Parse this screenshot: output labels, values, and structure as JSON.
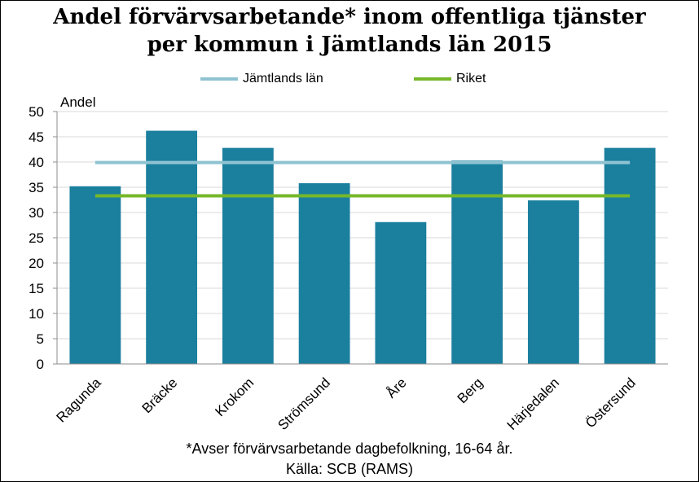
{
  "chart_data": {
    "type": "bar",
    "title_line1": "Andel förvärvsarbetande* inom offentliga tjänster",
    "title_line2": "per kommun i Jämtlands län 2015",
    "ylabel": "Andel",
    "xlabel": "",
    "ylim": [
      0,
      50
    ],
    "ytick_step": 5,
    "grid": true,
    "categories": [
      "Ragunda",
      "Bräcke",
      "Krokom",
      "Strömsund",
      "Åre",
      "Berg",
      "Härjedalen",
      "Östersund"
    ],
    "values": [
      35.2,
      46.2,
      42.8,
      35.8,
      28.1,
      40.3,
      32.4,
      42.8
    ],
    "bar_color": "#1b7f9e",
    "reference_lines": [
      {
        "name": "Jämtlands län",
        "value": 39.9,
        "color": "#8fc3d1"
      },
      {
        "name": "Riket",
        "value": 33.3,
        "color": "#76b82a"
      }
    ],
    "legend_position": "top"
  },
  "footnote": {
    "line1": "*Avser förvärvsarbetande dagbefolkning,  16-64 år.",
    "line2": "Källa: SCB (RAMS)"
  }
}
